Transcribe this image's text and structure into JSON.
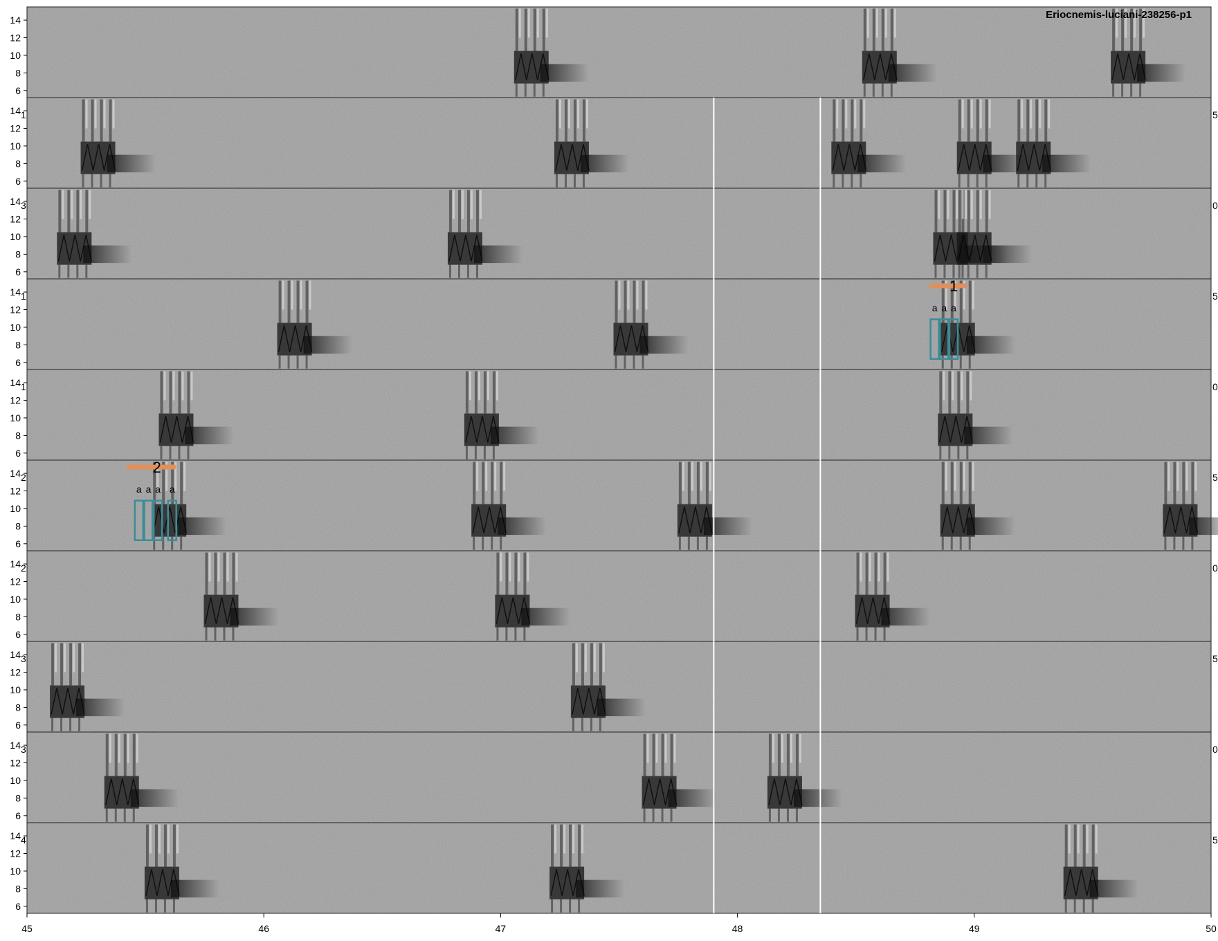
{
  "title": "Eriocnemis-luciani-238256-p1",
  "colors": {
    "background": "#8c8c8c",
    "call": "#141414",
    "annotation_box": "#3a8d99",
    "bracket": "#e0905a",
    "separator": "#ffffff",
    "frame": "#222222"
  },
  "chart_data": {
    "type": "heatmap",
    "description_kind": "multi-row spectrogram",
    "x_ticks": [
      "45",
      "46",
      "47",
      "48",
      "49",
      "50"
    ],
    "xlim": [
      45,
      50
    ],
    "y_ticks": [
      "6",
      "8",
      "10",
      "12",
      "14"
    ],
    "ylim": [
      5.2,
      15.5
    ],
    "y_unit_hidden": "kHz",
    "row_count": 10,
    "vertical_separators_x": [
      47.9,
      48.35
    ],
    "right_edge_labels": [
      "5",
      "0",
      "5",
      "0",
      "5",
      "0",
      "5",
      "0",
      "5"
    ],
    "left_edge_labels": [
      "1",
      "3",
      "1",
      "1",
      "2",
      "2",
      "3",
      "3",
      "4"
    ],
    "rows": [
      {
        "calls": [
          47.08,
          48.55,
          49.6
        ]
      },
      {
        "calls": [
          45.25,
          47.25,
          48.42,
          48.95,
          49.2
        ]
      },
      {
        "calls": [
          45.15,
          46.8,
          48.85,
          48.95
        ]
      },
      {
        "calls": [
          46.08,
          47.5,
          48.88
        ]
      },
      {
        "calls": [
          45.58,
          46.87,
          48.87
        ]
      },
      {
        "calls": [
          45.55,
          46.9,
          47.77,
          48.88,
          49.82
        ]
      },
      {
        "calls": [
          45.77,
          47.0,
          48.52
        ]
      },
      {
        "calls": [
          45.12,
          47.32
        ]
      },
      {
        "calls": [
          45.35,
          47.62,
          48.15
        ]
      },
      {
        "calls": [
          45.52,
          47.23,
          49.4
        ]
      }
    ],
    "annotations": [
      {
        "row": 3,
        "bracket_number": "1",
        "bracket_range": [
          48.82,
          48.96
        ],
        "syllable_labels": [
          "a",
          "a",
          "a"
        ],
        "syllable_x": [
          48.83,
          48.87,
          48.91
        ]
      },
      {
        "row": 5,
        "bracket_number": "2",
        "bracket_range": [
          45.43,
          45.62
        ],
        "syllable_labels": [
          "a",
          "a",
          "a",
          "a"
        ],
        "syllable_x": [
          45.47,
          45.51,
          45.55,
          45.61
        ]
      }
    ]
  }
}
